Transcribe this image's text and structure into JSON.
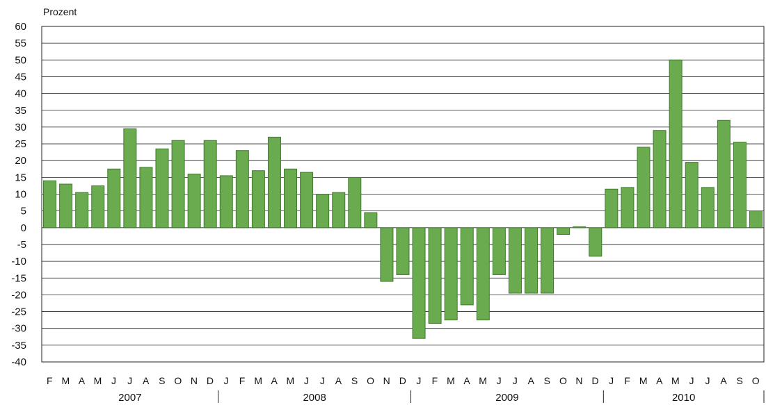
{
  "chart_data": {
    "type": "bar",
    "ylabel": "Prozent",
    "ylim": [
      -40,
      60
    ],
    "yticks": [
      60,
      55,
      50,
      45,
      40,
      35,
      30,
      25,
      20,
      15,
      10,
      5,
      0,
      -5,
      -10,
      -15,
      -20,
      -25,
      -30,
      -35,
      -40
    ],
    "grid": true,
    "bar_color": "#6aab4f",
    "bar_edge_color": "#3f7a2e",
    "categories": [
      "F",
      "M",
      "A",
      "M",
      "J",
      "J",
      "A",
      "S",
      "O",
      "N",
      "D",
      "J",
      "F",
      "M",
      "A",
      "M",
      "J",
      "J",
      "A",
      "S",
      "O",
      "N",
      "D",
      "J",
      "F",
      "M",
      "A",
      "M",
      "J",
      "J",
      "A",
      "S",
      "O",
      "N",
      "D",
      "J",
      "F",
      "M",
      "A",
      "M",
      "J",
      "J",
      "A",
      "S",
      "O"
    ],
    "years": [
      {
        "label": "2007",
        "start": 0,
        "end": 10
      },
      {
        "label": "2008",
        "start": 11,
        "end": 22
      },
      {
        "label": "2009",
        "start": 23,
        "end": 34
      },
      {
        "label": "2010",
        "start": 35,
        "end": 44
      }
    ],
    "values": [
      14,
      13,
      10.5,
      12.5,
      17.5,
      29.5,
      18,
      23.5,
      26,
      16,
      26,
      15.5,
      23,
      17,
      27,
      17.5,
      16.5,
      10,
      10.5,
      15,
      4.5,
      -16,
      -14,
      -33,
      -28.5,
      -27.5,
      -23,
      -27.5,
      -14,
      -19.5,
      -19.5,
      -19.5,
      -2,
      0.3,
      -8.5,
      11.5,
      12,
      24,
      29,
      50,
      19.5,
      12,
      32,
      25.5,
      5
    ]
  }
}
